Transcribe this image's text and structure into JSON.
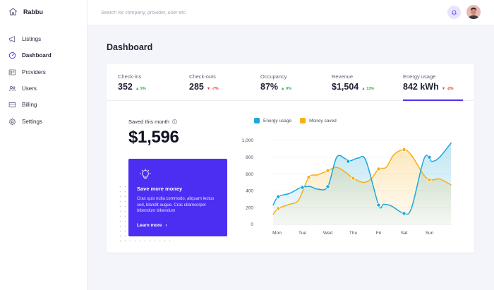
{
  "app": {
    "name": "Rabbu"
  },
  "sidebar": {
    "items": [
      {
        "label": "Listings",
        "icon": "megaphone-icon",
        "active": false
      },
      {
        "label": "Dashboard",
        "icon": "gauge-icon",
        "active": true
      },
      {
        "label": "Providers",
        "icon": "id-card-icon",
        "active": false
      },
      {
        "label": "Users",
        "icon": "users-icon",
        "active": false
      },
      {
        "label": "Billing",
        "icon": "credit-card-icon",
        "active": false
      },
      {
        "label": "Settings",
        "icon": "gear-icon",
        "active": false
      }
    ]
  },
  "header": {
    "search_placeholder": "Search for company, provider, user etc.",
    "icons": [
      "bell-icon",
      "avatar"
    ]
  },
  "page": {
    "title": "Dashboard"
  },
  "kpis": [
    {
      "label": "Check-ins",
      "value": "352",
      "delta": "9%",
      "direction": "up"
    },
    {
      "label": "Check-outs",
      "value": "285",
      "delta": "-7%",
      "direction": "down"
    },
    {
      "label": "Occupancy",
      "value": "87%",
      "delta": "9%",
      "direction": "up"
    },
    {
      "label": "Revenue",
      "value": "$1,504",
      "delta": "13%",
      "direction": "up"
    },
    {
      "label": "Energy usage",
      "value": "842 kWh",
      "delta": "-2%",
      "direction": "down",
      "selected": true
    }
  ],
  "savings": {
    "label": "Saved this month",
    "value": "$1,596"
  },
  "promo": {
    "title": "Save more money",
    "text": "Cras quis nulla commodo, aliquam lectus sed, blandit augue. Cras ullamcorper bibendum bibendum",
    "link": "Learn more"
  },
  "colors": {
    "accent": "#4b2ef2",
    "energy": "#1ea7d8",
    "money": "#f5b015",
    "up": "#22b14c",
    "down": "#e53935"
  },
  "chart_data": {
    "type": "line",
    "x": [
      "Mon",
      "Tue",
      "Wed",
      "Thu",
      "Fri",
      "Sat",
      "Sun"
    ],
    "ylim": [
      0,
      1000
    ],
    "yticks": [
      "0",
      "200",
      "400",
      "600",
      "800",
      "1,000"
    ],
    "legend_position": "top-left",
    "grid": true,
    "series": [
      {
        "name": "Energy usage",
        "color": "#1ea7d8",
        "points": [
          [
            -0.15,
            230
          ],
          [
            0.05,
            330
          ],
          [
            0.5,
            370
          ],
          [
            0.95,
            440
          ],
          [
            1.3,
            450
          ],
          [
            1.6,
            420
          ],
          [
            2.0,
            450
          ],
          [
            2.35,
            800
          ],
          [
            2.7,
            780
          ],
          [
            2.9,
            760
          ],
          [
            3.2,
            790
          ],
          [
            3.5,
            760
          ],
          [
            4.0,
            230
          ],
          [
            4.2,
            240
          ],
          [
            4.5,
            220
          ],
          [
            5.0,
            130
          ],
          [
            5.3,
            200
          ],
          [
            5.8,
            790
          ],
          [
            6.1,
            750
          ],
          [
            6.4,
            800
          ],
          [
            6.85,
            970
          ]
        ]
      },
      {
        "name": "Money saved",
        "color": "#f5b015",
        "points": [
          [
            -0.15,
            120
          ],
          [
            0.05,
            190
          ],
          [
            0.5,
            240
          ],
          [
            0.85,
            290
          ],
          [
            1.25,
            560
          ],
          [
            1.6,
            590
          ],
          [
            2.0,
            640
          ],
          [
            2.35,
            680
          ],
          [
            2.7,
            620
          ],
          [
            3.0,
            550
          ],
          [
            3.4,
            500
          ],
          [
            3.7,
            540
          ],
          [
            4.0,
            660
          ],
          [
            4.3,
            680
          ],
          [
            4.6,
            830
          ],
          [
            5.0,
            890
          ],
          [
            5.3,
            820
          ],
          [
            5.8,
            580
          ],
          [
            6.1,
            530
          ],
          [
            6.4,
            540
          ],
          [
            6.85,
            470
          ]
        ]
      }
    ],
    "markers": {
      "Energy usage": [
        [
          0.05,
          330
        ],
        [
          1.0,
          440
        ],
        [
          2.0,
          450
        ],
        [
          2.8,
          750
        ],
        [
          4.0,
          230
        ],
        [
          5.0,
          130
        ],
        [
          6.0,
          800
        ]
      ],
      "Money saved": [
        [
          0.05,
          190
        ],
        [
          1.25,
          560
        ],
        [
          2.0,
          640
        ],
        [
          3.0,
          550
        ],
        [
          4.0,
          660
        ],
        [
          5.0,
          890
        ],
        [
          6.0,
          530
        ]
      ]
    }
  }
}
